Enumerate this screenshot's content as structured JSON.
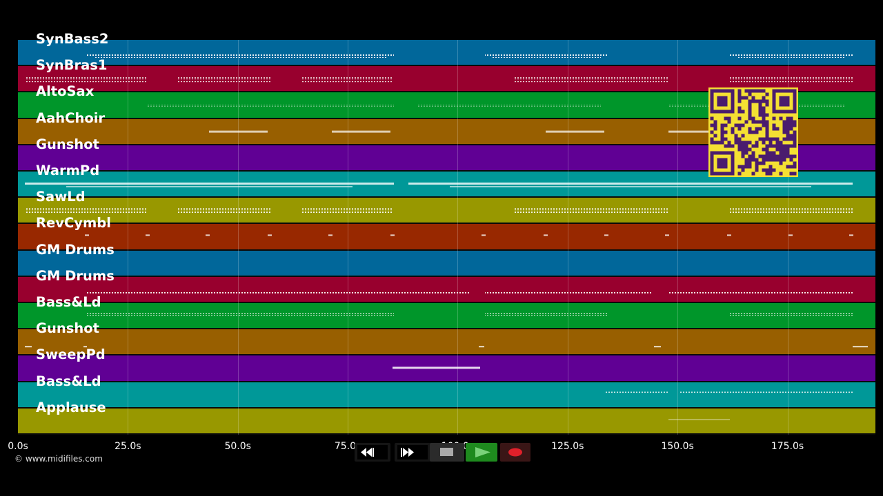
{
  "tracks": [
    {
      "name": "SynBass2",
      "color": "#01679a"
    },
    {
      "name": "SynBras1",
      "color": "#98002e"
    },
    {
      "name": "AltoSax",
      "color": "#00962a"
    },
    {
      "name": "AahChoir",
      "color": "#985f00"
    },
    {
      "name": "Gunshot",
      "color": "#600094"
    },
    {
      "name": "WarmPd",
      "color": "#009898"
    },
    {
      "name": "SawLd",
      "color": "#989800"
    },
    {
      "name": "RevCymbl",
      "color": "#982800"
    },
    {
      "name": "GM Drums",
      "color": "#01679a"
    },
    {
      "name": "GM Drums",
      "color": "#98002e"
    },
    {
      "name": "Bass&Ld",
      "color": "#00962a"
    },
    {
      "name": "Gunshot",
      "color": "#985f00"
    },
    {
      "name": "SweepPd",
      "color": "#600094"
    },
    {
      "name": "Bass&Ld",
      "color": "#009898"
    },
    {
      "name": "Applause",
      "color": "#989800"
    }
  ],
  "timeline": {
    "max_seconds": 195,
    "ticks": [
      "0.0s",
      "25.0s",
      "50.0s",
      "75.0s",
      "100.0s",
      "125.0s",
      "150.0s",
      "175.0s"
    ],
    "tick_values": [
      0,
      25,
      50,
      75,
      100,
      125,
      150,
      175
    ]
  },
  "copyright": "© www.midifiles.com",
  "transport": {
    "rewind_icon": "rewind-icon",
    "fastforward_icon": "fast-forward-icon",
    "stop_icon": "stop-icon",
    "play_icon": "play-icon",
    "record_icon": "record-icon",
    "play_color": "#1e8a1e",
    "record_color": "#e0202a"
  },
  "qr_colors": {
    "background": "#f4e033",
    "modules": "#4a1c6e"
  }
}
